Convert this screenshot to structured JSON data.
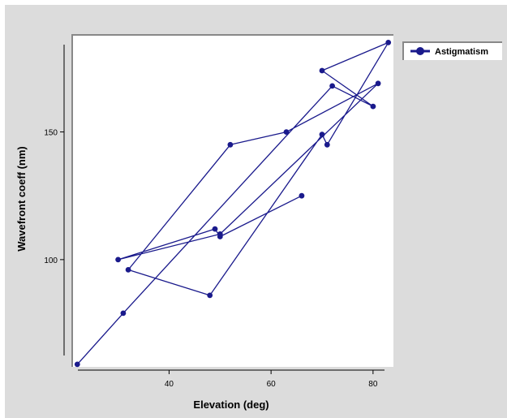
{
  "chart_data": {
    "type": "line",
    "title": "",
    "xlabel": "Elevation (deg)",
    "ylabel": "Wavefront coeff (nm)",
    "xlim": [
      21,
      84
    ],
    "ylim": [
      58,
      188
    ],
    "xticks": [
      40,
      60,
      80
    ],
    "yticks": [
      100,
      150
    ],
    "grid": false,
    "legend": {
      "position": "top-right",
      "entries": [
        "Astigmatism"
      ]
    },
    "series": [
      {
        "name": "Astigmatism",
        "color": "#1a1a8c",
        "marker": "circle",
        "x": [
          66,
          50,
          49,
          30,
          50,
          81,
          63,
          52,
          32,
          48,
          70,
          71,
          83,
          70,
          80,
          72,
          31,
          22
        ],
        "y": [
          125,
          109,
          112,
          100,
          110,
          169,
          150,
          145,
          96,
          86,
          149,
          145,
          185,
          174,
          160,
          168,
          79,
          59
        ]
      }
    ]
  }
}
